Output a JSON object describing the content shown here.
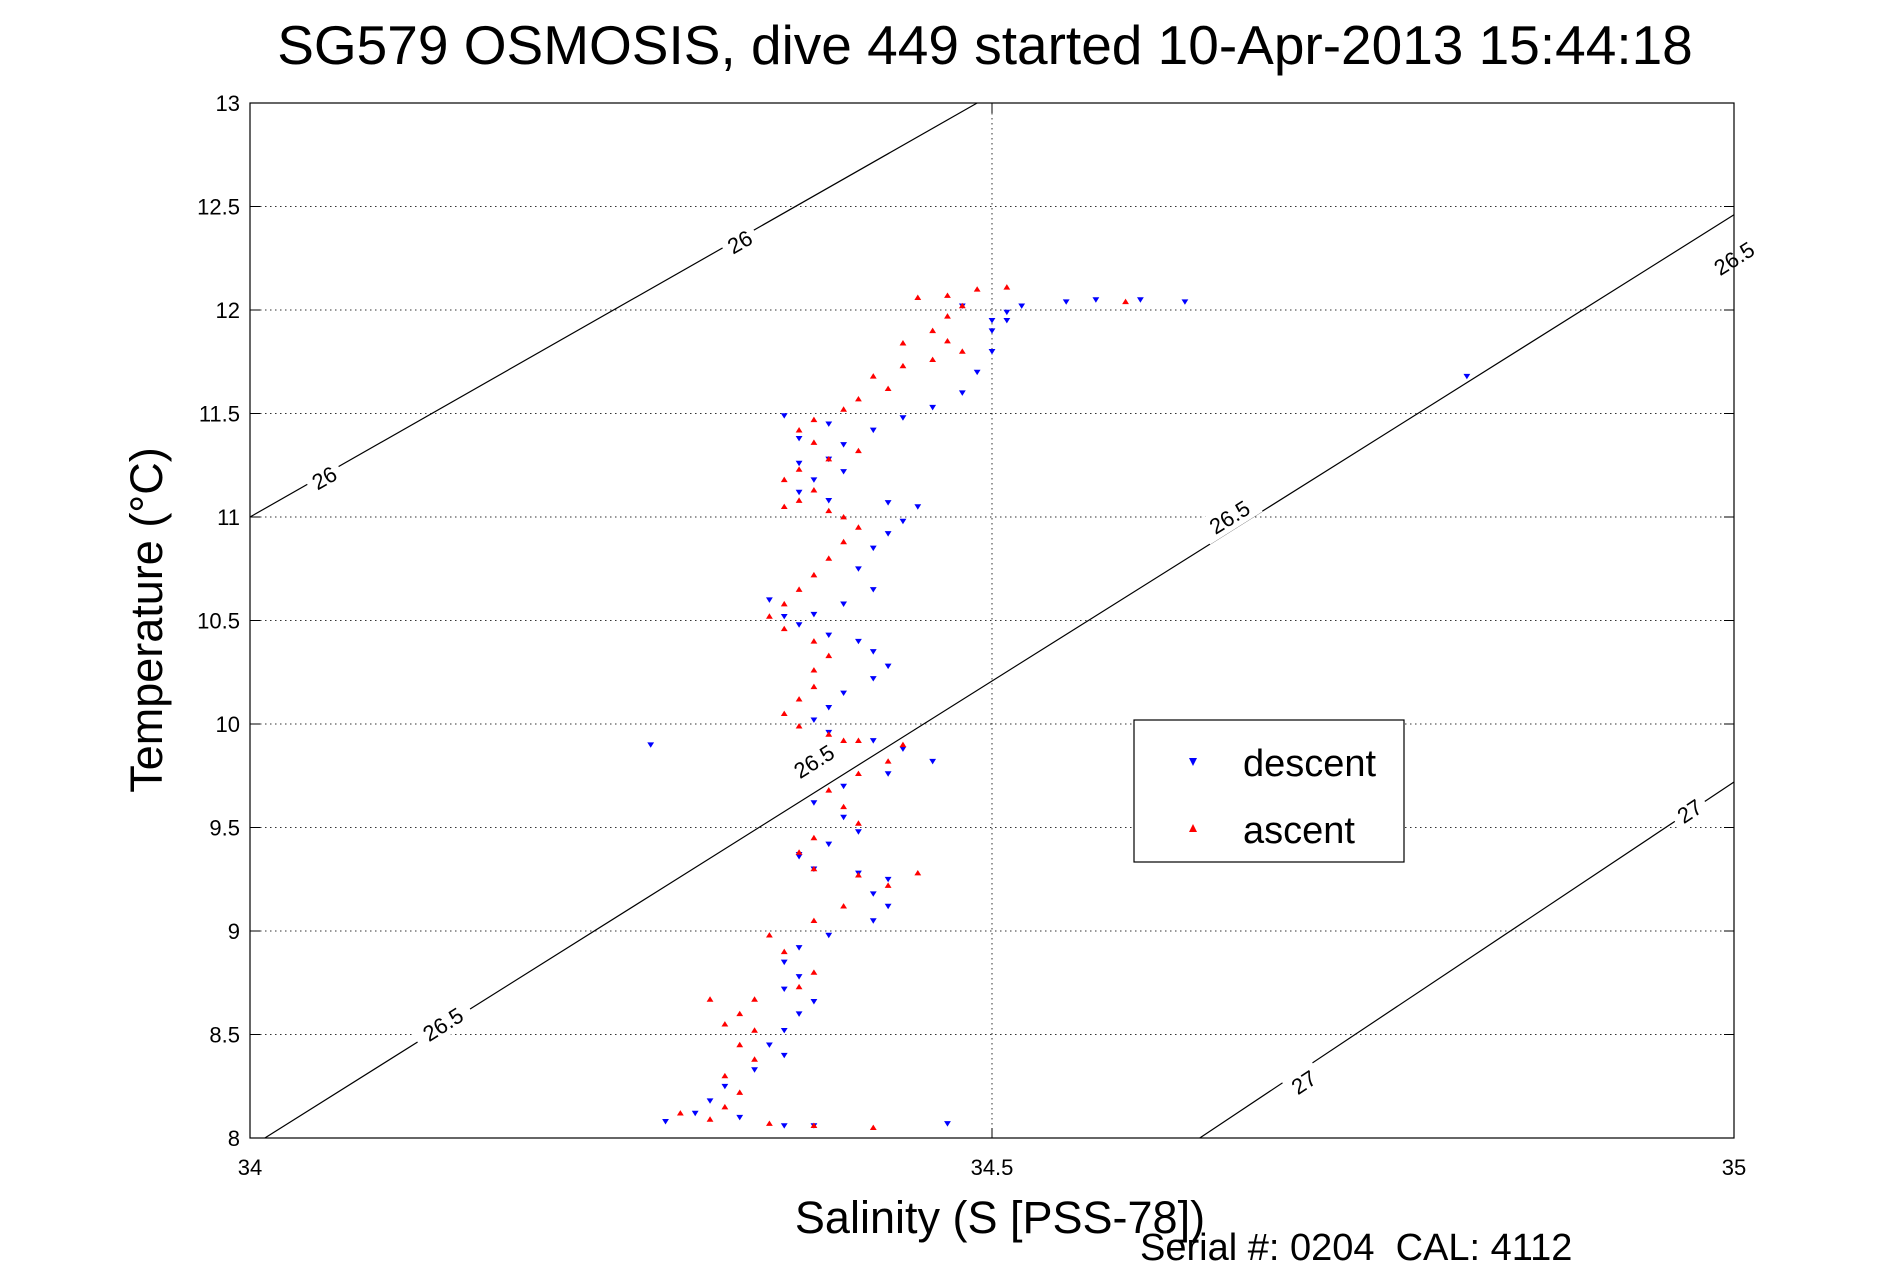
{
  "chart_data": {
    "type": "scatter",
    "title": "SG579 OSMOSIS, dive 449 started 10-Apr-2013 15:44:18",
    "xlabel": "Salinity (S [PSS-78])",
    "ylabel": "Temperature (°C)",
    "xlim": [
      34,
      35
    ],
    "ylim": [
      8,
      13
    ],
    "x_ticks": [
      "34",
      "34.5",
      "35"
    ],
    "y_ticks": [
      "8",
      "8.5",
      "9",
      "9.5",
      "10",
      "10.5",
      "11",
      "11.5",
      "12",
      "12.5",
      "13"
    ],
    "grid": true,
    "legend_position": "center-right",
    "footer": "Serial #: 0204  CAL: 4112",
    "colors": {
      "descent": "#0000ff",
      "ascent": "#ff0000",
      "contour": "#000000"
    },
    "density_contours": [
      {
        "label": "26",
        "segments": [
          [
            [
              34.0,
              11.0
            ],
            [
              34.49,
              13.0
            ]
          ]
        ],
        "labels": [
          [
            34.05,
            11.19
          ],
          [
            34.33,
            12.33
          ]
        ]
      },
      {
        "label": "26.5",
        "segments": [
          [
            [
              34.01,
              8.0
            ],
            [
              35.0,
              12.46
            ]
          ]
        ],
        "labels": [
          [
            34.13,
            8.55
          ],
          [
            34.38,
            9.82
          ],
          [
            34.66,
            11.0
          ],
          [
            35.0,
            12.25
          ]
        ]
      },
      {
        "label": "27",
        "segments": [
          [
            [
              34.64,
              8.0
            ],
            [
              35.0,
              9.72
            ]
          ]
        ],
        "labels": [
          [
            34.71,
            8.27
          ],
          [
            34.97,
            9.58
          ]
        ]
      }
    ],
    "series": [
      {
        "name": "descent",
        "marker": "triangle-down",
        "points": [
          [
            34.55,
            12.04
          ],
          [
            34.57,
            12.05
          ],
          [
            34.6,
            12.05
          ],
          [
            34.63,
            12.04
          ],
          [
            34.52,
            12.02
          ],
          [
            34.51,
            11.99
          ],
          [
            34.5,
            11.95
          ],
          [
            34.5,
            11.9
          ],
          [
            34.5,
            11.8
          ],
          [
            34.49,
            11.7
          ],
          [
            34.48,
            11.6
          ],
          [
            34.46,
            11.53
          ],
          [
            34.44,
            11.48
          ],
          [
            34.42,
            11.42
          ],
          [
            34.4,
            11.35
          ],
          [
            34.39,
            11.28
          ],
          [
            34.4,
            11.22
          ],
          [
            34.38,
            11.18
          ],
          [
            34.37,
            11.12
          ],
          [
            34.39,
            11.08
          ],
          [
            34.43,
            11.07
          ],
          [
            34.45,
            11.05
          ],
          [
            34.44,
            10.98
          ],
          [
            34.43,
            10.92
          ],
          [
            34.42,
            10.85
          ],
          [
            34.41,
            10.75
          ],
          [
            34.42,
            10.65
          ],
          [
            34.4,
            10.58
          ],
          [
            34.38,
            10.53
          ],
          [
            34.37,
            10.48
          ],
          [
            34.39,
            10.43
          ],
          [
            34.41,
            10.4
          ],
          [
            34.42,
            10.35
          ],
          [
            34.43,
            10.28
          ],
          [
            34.42,
            10.22
          ],
          [
            34.4,
            10.15
          ],
          [
            34.39,
            10.08
          ],
          [
            34.38,
            10.02
          ],
          [
            34.39,
            9.96
          ],
          [
            34.42,
            9.92
          ],
          [
            34.44,
            9.88
          ],
          [
            34.46,
            9.82
          ],
          [
            34.43,
            9.76
          ],
          [
            34.4,
            9.7
          ],
          [
            34.38,
            9.62
          ],
          [
            34.4,
            9.55
          ],
          [
            34.41,
            9.48
          ],
          [
            34.39,
            9.42
          ],
          [
            34.37,
            9.36
          ],
          [
            34.38,
            9.3
          ],
          [
            34.41,
            9.28
          ],
          [
            34.43,
            9.25
          ],
          [
            34.42,
            9.18
          ],
          [
            34.43,
            9.12
          ],
          [
            34.42,
            9.05
          ],
          [
            34.39,
            8.98
          ],
          [
            34.37,
            8.92
          ],
          [
            34.36,
            8.85
          ],
          [
            34.37,
            8.78
          ],
          [
            34.36,
            8.72
          ],
          [
            34.38,
            8.66
          ],
          [
            34.37,
            8.6
          ],
          [
            34.36,
            8.52
          ],
          [
            34.35,
            8.45
          ],
          [
            34.36,
            8.4
          ],
          [
            34.34,
            8.33
          ],
          [
            34.32,
            8.25
          ],
          [
            34.31,
            8.18
          ],
          [
            34.3,
            8.12
          ],
          [
            34.33,
            8.1
          ],
          [
            34.28,
            8.08
          ],
          [
            34.38,
            8.06
          ],
          [
            34.47,
            8.07
          ],
          [
            34.36,
            8.06
          ],
          [
            34.82,
            11.68
          ],
          [
            34.36,
            11.49
          ],
          [
            34.37,
            11.26
          ],
          [
            34.35,
            10.6
          ],
          [
            34.36,
            10.52
          ],
          [
            34.27,
            9.9
          ],
          [
            34.37,
            9.37
          ],
          [
            34.48,
            12.02
          ],
          [
            34.51,
            11.95
          ],
          [
            34.39,
            11.45
          ],
          [
            34.37,
            11.38
          ]
        ]
      },
      {
        "name": "ascent",
        "marker": "triangle-up",
        "points": [
          [
            34.51,
            12.11
          ],
          [
            34.49,
            12.1
          ],
          [
            34.47,
            12.07
          ],
          [
            34.45,
            12.06
          ],
          [
            34.48,
            12.02
          ],
          [
            34.47,
            11.97
          ],
          [
            34.46,
            11.9
          ],
          [
            34.47,
            11.85
          ],
          [
            34.48,
            11.8
          ],
          [
            34.46,
            11.76
          ],
          [
            34.44,
            11.73
          ],
          [
            34.42,
            11.68
          ],
          [
            34.43,
            11.62
          ],
          [
            34.41,
            11.57
          ],
          [
            34.4,
            11.52
          ],
          [
            34.38,
            11.47
          ],
          [
            34.37,
            11.42
          ],
          [
            34.38,
            11.36
          ],
          [
            34.41,
            11.32
          ],
          [
            34.39,
            11.28
          ],
          [
            34.37,
            11.23
          ],
          [
            34.36,
            11.18
          ],
          [
            34.38,
            11.13
          ],
          [
            34.37,
            11.08
          ],
          [
            34.36,
            11.05
          ],
          [
            34.39,
            11.03
          ],
          [
            34.4,
            11.0
          ],
          [
            34.41,
            10.95
          ],
          [
            34.4,
            10.88
          ],
          [
            34.39,
            10.8
          ],
          [
            34.38,
            10.72
          ],
          [
            34.37,
            10.65
          ],
          [
            34.36,
            10.58
          ],
          [
            34.35,
            10.52
          ],
          [
            34.36,
            10.46
          ],
          [
            34.38,
            10.4
          ],
          [
            34.39,
            10.33
          ],
          [
            34.38,
            10.26
          ],
          [
            34.38,
            10.18
          ],
          [
            34.37,
            10.12
          ],
          [
            34.36,
            10.05
          ],
          [
            34.37,
            9.99
          ],
          [
            34.39,
            9.95
          ],
          [
            34.41,
            9.92
          ],
          [
            34.44,
            9.9
          ],
          [
            34.43,
            9.82
          ],
          [
            34.41,
            9.76
          ],
          [
            34.39,
            9.68
          ],
          [
            34.4,
            9.6
          ],
          [
            34.41,
            9.52
          ],
          [
            34.38,
            9.45
          ],
          [
            34.37,
            9.38
          ],
          [
            34.38,
            9.3
          ],
          [
            34.41,
            9.27
          ],
          [
            34.45,
            9.28
          ],
          [
            34.43,
            9.22
          ],
          [
            34.4,
            9.12
          ],
          [
            34.38,
            9.05
          ],
          [
            34.35,
            8.98
          ],
          [
            34.36,
            8.9
          ],
          [
            34.38,
            8.8
          ],
          [
            34.37,
            8.73
          ],
          [
            34.34,
            8.67
          ],
          [
            34.33,
            8.6
          ],
          [
            34.34,
            8.52
          ],
          [
            34.33,
            8.45
          ],
          [
            34.34,
            8.38
          ],
          [
            34.32,
            8.3
          ],
          [
            34.33,
            8.22
          ],
          [
            34.32,
            8.15
          ],
          [
            34.31,
            8.09
          ],
          [
            34.35,
            8.07
          ],
          [
            34.38,
            8.06
          ],
          [
            34.42,
            8.05
          ],
          [
            34.59,
            12.04
          ],
          [
            34.31,
            8.67
          ],
          [
            34.32,
            8.55
          ],
          [
            34.29,
            8.12
          ],
          [
            34.4,
            9.92
          ],
          [
            34.44,
            11.84
          ]
        ]
      }
    ]
  }
}
